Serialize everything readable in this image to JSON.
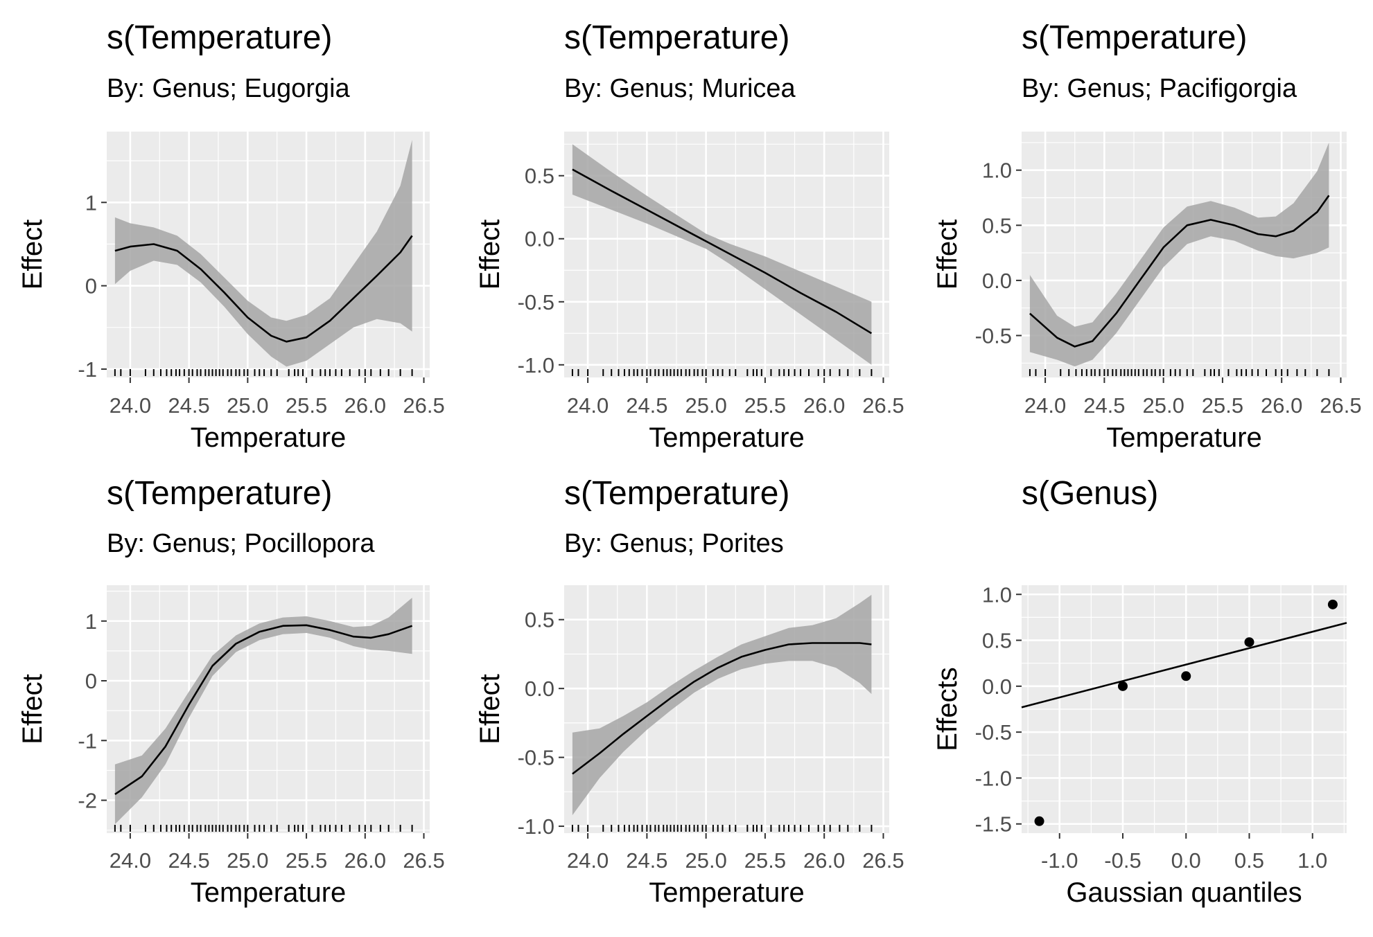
{
  "chart_data": [
    {
      "type": "line",
      "title": "s(Temperature)",
      "subtitle": "By: Genus; Eugorgia",
      "xlabel": "Temperature",
      "ylabel": "Effect",
      "xlim": [
        23.8,
        26.55
      ],
      "ylim": [
        -1.1,
        1.85
      ],
      "xticks": [
        {
          "v": 24.0,
          "l": "24.0"
        },
        {
          "v": 24.5,
          "l": "24.5"
        },
        {
          "v": 25.0,
          "l": "25.0"
        },
        {
          "v": 25.5,
          "l": "25.5"
        },
        {
          "v": 26.0,
          "l": "26.0"
        },
        {
          "v": 26.5,
          "l": "26.5"
        }
      ],
      "yticks": [
        {
          "v": -1,
          "l": "-1"
        },
        {
          "v": 0,
          "l": "0"
        },
        {
          "v": 1,
          "l": "1"
        }
      ],
      "grid": true,
      "series": [
        {
          "x": [
            23.87,
            24.0,
            24.2,
            24.4,
            24.6,
            24.8,
            25.0,
            25.2,
            25.33,
            25.5,
            25.7,
            25.9,
            26.1,
            26.3,
            26.4
          ],
          "y": [
            0.42,
            0.47,
            0.5,
            0.42,
            0.2,
            -0.08,
            -0.38,
            -0.6,
            -0.67,
            -0.62,
            -0.42,
            -0.15,
            0.12,
            0.4,
            0.6
          ],
          "lower": [
            0.02,
            0.18,
            0.3,
            0.25,
            0.04,
            -0.25,
            -0.58,
            -0.85,
            -0.97,
            -0.9,
            -0.7,
            -0.5,
            -0.4,
            -0.45,
            -0.55
          ],
          "upper": [
            0.82,
            0.75,
            0.7,
            0.6,
            0.38,
            0.1,
            -0.18,
            -0.38,
            -0.42,
            -0.35,
            -0.15,
            0.25,
            0.65,
            1.2,
            1.75
          ]
        }
      ]
    },
    {
      "type": "line",
      "title": "s(Temperature)",
      "subtitle": "By: Genus; Muricea",
      "xlabel": "Temperature",
      "ylabel": "Effect",
      "xlim": [
        23.8,
        26.55
      ],
      "ylim": [
        -1.1,
        0.85
      ],
      "xticks": [
        {
          "v": 24.0,
          "l": "24.0"
        },
        {
          "v": 24.5,
          "l": "24.5"
        },
        {
          "v": 25.0,
          "l": "25.0"
        },
        {
          "v": 25.5,
          "l": "25.5"
        },
        {
          "v": 26.0,
          "l": "26.0"
        },
        {
          "v": 26.5,
          "l": "26.5"
        }
      ],
      "yticks": [
        {
          "v": -1.0,
          "l": "-1.0"
        },
        {
          "v": -0.5,
          "l": "-0.5"
        },
        {
          "v": 0.0,
          "l": "0.0"
        },
        {
          "v": 0.5,
          "l": "0.5"
        }
      ],
      "grid": true,
      "series": [
        {
          "x": [
            23.87,
            24.2,
            24.5,
            24.8,
            25.0,
            25.2,
            25.5,
            25.8,
            26.1,
            26.4
          ],
          "y": [
            0.55,
            0.38,
            0.23,
            0.08,
            -0.02,
            -0.12,
            -0.27,
            -0.43,
            -0.58,
            -0.75
          ],
          "lower": [
            0.35,
            0.23,
            0.12,
            0.0,
            -0.08,
            -0.2,
            -0.4,
            -0.6,
            -0.8,
            -1.0
          ],
          "upper": [
            0.75,
            0.53,
            0.34,
            0.16,
            0.04,
            -0.04,
            -0.14,
            -0.26,
            -0.38,
            -0.5
          ]
        }
      ]
    },
    {
      "type": "line",
      "title": "s(Temperature)",
      "subtitle": "By: Genus; Pacifigorgia",
      "xlabel": "Temperature",
      "ylabel": "Effect",
      "xlim": [
        23.8,
        26.55
      ],
      "ylim": [
        -0.88,
        1.35
      ],
      "xticks": [
        {
          "v": 24.0,
          "l": "24.0"
        },
        {
          "v": 24.5,
          "l": "24.5"
        },
        {
          "v": 25.0,
          "l": "25.0"
        },
        {
          "v": 25.5,
          "l": "25.5"
        },
        {
          "v": 26.0,
          "l": "26.0"
        },
        {
          "v": 26.5,
          "l": "26.5"
        }
      ],
      "yticks": [
        {
          "v": -0.5,
          "l": "-0.5"
        },
        {
          "v": 0.0,
          "l": "0.0"
        },
        {
          "v": 0.5,
          "l": "0.5"
        },
        {
          "v": 1.0,
          "l": "1.0"
        }
      ],
      "grid": true,
      "series": [
        {
          "x": [
            23.87,
            24.1,
            24.25,
            24.4,
            24.6,
            24.8,
            25.0,
            25.2,
            25.4,
            25.6,
            25.8,
            25.95,
            26.1,
            26.3,
            26.4
          ],
          "y": [
            -0.3,
            -0.52,
            -0.6,
            -0.55,
            -0.3,
            0.0,
            0.3,
            0.5,
            0.55,
            0.5,
            0.42,
            0.4,
            0.45,
            0.62,
            0.77
          ],
          "lower": [
            -0.65,
            -0.72,
            -0.78,
            -0.72,
            -0.48,
            -0.18,
            0.12,
            0.33,
            0.4,
            0.36,
            0.27,
            0.22,
            0.2,
            0.25,
            0.3
          ],
          "upper": [
            0.05,
            -0.32,
            -0.42,
            -0.38,
            -0.12,
            0.18,
            0.48,
            0.67,
            0.72,
            0.66,
            0.57,
            0.58,
            0.7,
            0.99,
            1.25
          ]
        }
      ]
    },
    {
      "type": "line",
      "title": "s(Temperature)",
      "subtitle": "By: Genus; Pocillopora",
      "xlabel": "Temperature",
      "ylabel": "Effect",
      "xlim": [
        23.8,
        26.55
      ],
      "ylim": [
        -2.55,
        1.6
      ],
      "xticks": [
        {
          "v": 24.0,
          "l": "24.0"
        },
        {
          "v": 24.5,
          "l": "24.5"
        },
        {
          "v": 25.0,
          "l": "25.0"
        },
        {
          "v": 25.5,
          "l": "25.5"
        },
        {
          "v": 26.0,
          "l": "26.0"
        },
        {
          "v": 26.5,
          "l": "26.5"
        }
      ],
      "yticks": [
        {
          "v": -2,
          "l": "-2"
        },
        {
          "v": -1,
          "l": "-1"
        },
        {
          "v": 0,
          "l": "0"
        },
        {
          "v": 1,
          "l": "1"
        }
      ],
      "grid": true,
      "series": [
        {
          "x": [
            23.87,
            24.1,
            24.3,
            24.5,
            24.7,
            24.9,
            25.1,
            25.3,
            25.5,
            25.7,
            25.9,
            26.05,
            26.2,
            26.4
          ],
          "y": [
            -1.9,
            -1.6,
            -1.1,
            -0.4,
            0.25,
            0.62,
            0.82,
            0.92,
            0.93,
            0.85,
            0.74,
            0.72,
            0.78,
            0.92
          ],
          "lower": [
            -2.4,
            -1.95,
            -1.4,
            -0.62,
            0.08,
            0.48,
            0.68,
            0.78,
            0.8,
            0.72,
            0.58,
            0.52,
            0.5,
            0.45
          ],
          "upper": [
            -1.4,
            -1.25,
            -0.8,
            -0.18,
            0.42,
            0.76,
            0.96,
            1.06,
            1.08,
            1.0,
            0.9,
            0.92,
            1.06,
            1.39
          ]
        }
      ]
    },
    {
      "type": "line",
      "title": "s(Temperature)",
      "subtitle": "By: Genus; Porites",
      "xlabel": "Temperature",
      "ylabel": "Effect",
      "xlim": [
        23.8,
        26.55
      ],
      "ylim": [
        -1.05,
        0.75
      ],
      "xticks": [
        {
          "v": 24.0,
          "l": "24.0"
        },
        {
          "v": 24.5,
          "l": "24.5"
        },
        {
          "v": 25.0,
          "l": "25.0"
        },
        {
          "v": 25.5,
          "l": "25.5"
        },
        {
          "v": 26.0,
          "l": "26.0"
        },
        {
          "v": 26.5,
          "l": "26.5"
        }
      ],
      "yticks": [
        {
          "v": -1.0,
          "l": "-1.0"
        },
        {
          "v": -0.5,
          "l": "-0.5"
        },
        {
          "v": 0.0,
          "l": "0.0"
        },
        {
          "v": 0.5,
          "l": "0.5"
        }
      ],
      "grid": true,
      "series": [
        {
          "x": [
            23.87,
            24.1,
            24.3,
            24.5,
            24.7,
            24.9,
            25.1,
            25.3,
            25.5,
            25.7,
            25.9,
            26.1,
            26.3,
            26.4
          ],
          "y": [
            -0.62,
            -0.47,
            -0.33,
            -0.2,
            -0.07,
            0.05,
            0.15,
            0.23,
            0.28,
            0.32,
            0.33,
            0.33,
            0.33,
            0.32
          ],
          "lower": [
            -0.92,
            -0.65,
            -0.46,
            -0.3,
            -0.16,
            -0.03,
            0.07,
            0.14,
            0.18,
            0.2,
            0.2,
            0.15,
            0.04,
            -0.04
          ],
          "upper": [
            -0.32,
            -0.29,
            -0.2,
            -0.1,
            0.02,
            0.13,
            0.23,
            0.32,
            0.38,
            0.44,
            0.46,
            0.51,
            0.62,
            0.68
          ]
        }
      ]
    },
    {
      "type": "scatter",
      "title": "s(Genus)",
      "xlabel": "Gaussian quantiles",
      "ylabel": "Effects",
      "xlim": [
        -1.3,
        1.27
      ],
      "ylim": [
        -1.6,
        1.1
      ],
      "xticks": [
        {
          "v": -1.0,
          "l": "-1.0"
        },
        {
          "v": -0.5,
          "l": "-0.5"
        },
        {
          "v": 0.0,
          "l": "0.0"
        },
        {
          "v": 0.5,
          "l": "0.5"
        },
        {
          "v": 1.0,
          "l": "1.0"
        }
      ],
      "yticks": [
        {
          "v": -1.5,
          "l": "-1.5"
        },
        {
          "v": -1.0,
          "l": "-1.0"
        },
        {
          "v": -0.5,
          "l": "-0.5"
        },
        {
          "v": 0.0,
          "l": "0.0"
        },
        {
          "v": 0.5,
          "l": "0.5"
        },
        {
          "v": 1.0,
          "l": "1.0"
        }
      ],
      "grid": true,
      "points": {
        "x": [
          -1.16,
          -0.5,
          0.0,
          0.5,
          1.16
        ],
        "y": [
          -1.47,
          0.0,
          0.11,
          0.48,
          0.89
        ]
      },
      "reference_line": {
        "x": [
          -1.3,
          1.27
        ],
        "y": [
          -0.23,
          0.69
        ]
      }
    }
  ]
}
